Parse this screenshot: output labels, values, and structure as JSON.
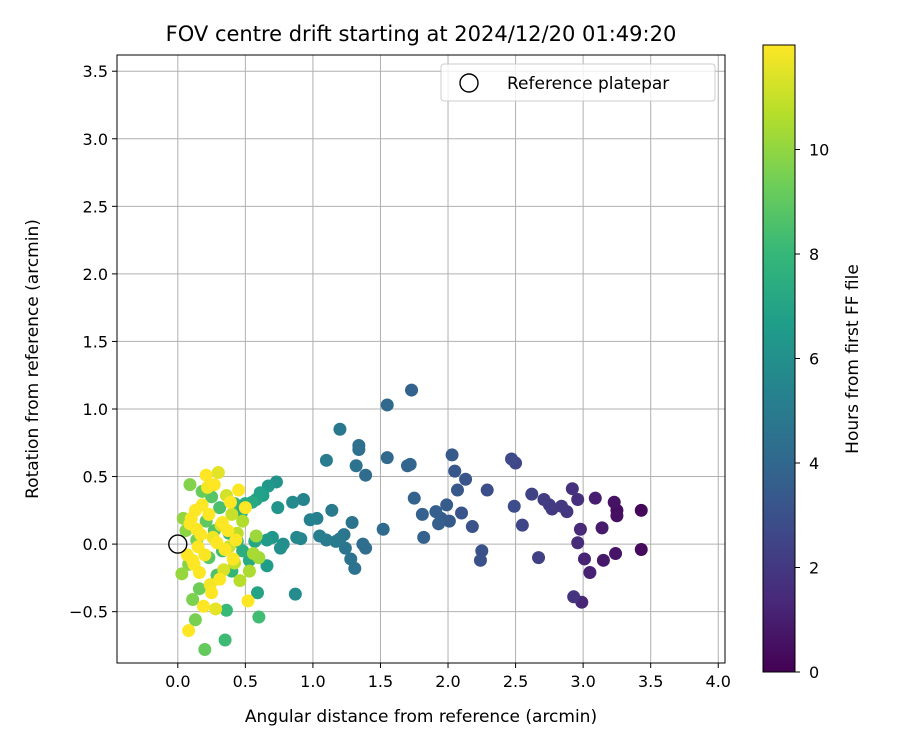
{
  "chart_data": {
    "type": "scatter",
    "title": "FOV centre drift starting at 2024/12/20 01:49:20",
    "xlabel": "Angular distance from reference (arcmin)",
    "ylabel": "Rotation from reference (arcmin)",
    "xlim": [
      -0.45,
      4.05
    ],
    "ylim": [
      -0.88,
      3.62
    ],
    "xticks": [
      0.0,
      0.5,
      1.0,
      1.5,
      2.0,
      2.5,
      3.0,
      3.5,
      4.0
    ],
    "xtick_labels": [
      "0.0",
      "0.5",
      "1.0",
      "1.5",
      "2.0",
      "2.5",
      "3.0",
      "3.5",
      "4.0"
    ],
    "yticks": [
      -0.5,
      0.0,
      0.5,
      1.0,
      1.5,
      2.0,
      2.5,
      3.0,
      3.5
    ],
    "ytick_labels": [
      "−0.5",
      "0.0",
      "0.5",
      "1.0",
      "1.5",
      "2.0",
      "2.5",
      "3.0",
      "3.5"
    ],
    "grid": true,
    "legend": {
      "position": "top-right",
      "entries": [
        "Reference platepar"
      ]
    },
    "reference_point": {
      "x": 0.0,
      "y": 0.0
    },
    "colorbar": {
      "label": "Hours from first FF file",
      "colormap": "viridis",
      "range": [
        0,
        12
      ],
      "ticks": [
        0,
        2,
        4,
        6,
        8,
        10
      ],
      "tick_labels": [
        "0",
        "2",
        "4",
        "6",
        "8",
        "10"
      ]
    },
    "colormap_stops": [
      "#440154",
      "#482878",
      "#3e4989",
      "#31688e",
      "#26828e",
      "#1f9e89",
      "#35b779",
      "#6ece58",
      "#b5de2b",
      "#fde725"
    ],
    "points": [
      {
        "x": 3.43,
        "y": 0.25,
        "h": 0.2
      },
      {
        "x": 3.43,
        "y": -0.04,
        "h": 0.3
      },
      {
        "x": 3.25,
        "y": 0.25,
        "h": 0.4
      },
      {
        "x": 3.25,
        "y": 0.21,
        "h": 0.5
      },
      {
        "x": 3.23,
        "y": 0.31,
        "h": 0.6
      },
      {
        "x": 3.24,
        "y": -0.07,
        "h": 0.7
      },
      {
        "x": 3.15,
        "y": -0.12,
        "h": 0.8
      },
      {
        "x": 3.14,
        "y": 0.12,
        "h": 0.9
      },
      {
        "x": 3.09,
        "y": 0.34,
        "h": 1.0
      },
      {
        "x": 3.05,
        "y": -0.21,
        "h": 1.1
      },
      {
        "x": 3.01,
        "y": -0.11,
        "h": 1.2
      },
      {
        "x": 2.99,
        "y": -0.43,
        "h": 1.3
      },
      {
        "x": 2.98,
        "y": 0.11,
        "h": 1.4
      },
      {
        "x": 2.96,
        "y": 0.01,
        "h": 1.5
      },
      {
        "x": 2.96,
        "y": 0.33,
        "h": 1.6
      },
      {
        "x": 2.92,
        "y": 0.41,
        "h": 1.7
      },
      {
        "x": 2.93,
        "y": -0.39,
        "h": 1.8
      },
      {
        "x": 2.88,
        "y": 0.24,
        "h": 1.9
      },
      {
        "x": 2.84,
        "y": 0.28,
        "h": 2.0
      },
      {
        "x": 2.77,
        "y": 0.26,
        "h": 2.0
      },
      {
        "x": 2.75,
        "y": 0.29,
        "h": 2.1
      },
      {
        "x": 2.71,
        "y": 0.33,
        "h": 2.2
      },
      {
        "x": 2.67,
        "y": -0.1,
        "h": 2.3
      },
      {
        "x": 2.62,
        "y": 0.37,
        "h": 2.4
      },
      {
        "x": 2.55,
        "y": 0.14,
        "h": 2.5
      },
      {
        "x": 2.5,
        "y": 0.6,
        "h": 2.6
      },
      {
        "x": 2.47,
        "y": 0.63,
        "h": 2.7
      },
      {
        "x": 2.49,
        "y": 0.28,
        "h": 2.8
      },
      {
        "x": 2.29,
        "y": 0.4,
        "h": 2.9
      },
      {
        "x": 2.25,
        "y": -0.05,
        "h": 3.0
      },
      {
        "x": 2.24,
        "y": -0.12,
        "h": 3.0
      },
      {
        "x": 2.18,
        "y": 0.13,
        "h": 3.1
      },
      {
        "x": 2.13,
        "y": 0.48,
        "h": 3.2
      },
      {
        "x": 2.1,
        "y": 0.23,
        "h": 3.2
      },
      {
        "x": 2.07,
        "y": 0.4,
        "h": 3.3
      },
      {
        "x": 2.05,
        "y": 0.54,
        "h": 3.3
      },
      {
        "x": 2.03,
        "y": 0.66,
        "h": 3.4
      },
      {
        "x": 2.01,
        "y": 0.17,
        "h": 3.4
      },
      {
        "x": 1.99,
        "y": 0.29,
        "h": 3.5
      },
      {
        "x": 1.95,
        "y": 0.19,
        "h": 3.5
      },
      {
        "x": 1.93,
        "y": 0.15,
        "h": 3.6
      },
      {
        "x": 1.91,
        "y": 0.24,
        "h": 3.6
      },
      {
        "x": 1.82,
        "y": 0.05,
        "h": 3.7
      },
      {
        "x": 1.81,
        "y": 0.22,
        "h": 3.7
      },
      {
        "x": 1.75,
        "y": 0.34,
        "h": 3.8
      },
      {
        "x": 1.73,
        "y": 1.14,
        "h": 3.8
      },
      {
        "x": 1.72,
        "y": 0.59,
        "h": 3.9
      },
      {
        "x": 1.7,
        "y": 0.58,
        "h": 3.9
      },
      {
        "x": 1.55,
        "y": 1.03,
        "h": 4.0
      },
      {
        "x": 1.55,
        "y": 0.64,
        "h": 4.0
      },
      {
        "x": 1.52,
        "y": 0.11,
        "h": 4.1
      },
      {
        "x": 1.39,
        "y": 0.51,
        "h": 4.2
      },
      {
        "x": 1.39,
        "y": -0.03,
        "h": 4.3
      },
      {
        "x": 1.37,
        "y": 0.0,
        "h": 4.3
      },
      {
        "x": 1.34,
        "y": 0.73,
        "h": 4.4
      },
      {
        "x": 1.34,
        "y": 0.7,
        "h": 4.4
      },
      {
        "x": 1.32,
        "y": 0.58,
        "h": 4.5
      },
      {
        "x": 1.31,
        "y": -0.18,
        "h": 4.5
      },
      {
        "x": 1.29,
        "y": 0.16,
        "h": 4.6
      },
      {
        "x": 1.28,
        "y": -0.11,
        "h": 4.6
      },
      {
        "x": 1.24,
        "y": -0.03,
        "h": 4.7
      },
      {
        "x": 1.23,
        "y": 0.07,
        "h": 4.7
      },
      {
        "x": 1.2,
        "y": 0.85,
        "h": 4.8
      },
      {
        "x": 1.2,
        "y": 0.04,
        "h": 4.8
      },
      {
        "x": 1.17,
        "y": 0.02,
        "h": 4.9
      },
      {
        "x": 1.14,
        "y": 0.25,
        "h": 4.9
      },
      {
        "x": 1.1,
        "y": 0.62,
        "h": 5.0
      },
      {
        "x": 1.1,
        "y": 0.03,
        "h": 5.0
      },
      {
        "x": 1.05,
        "y": 0.06,
        "h": 5.1
      },
      {
        "x": 1.03,
        "y": 0.19,
        "h": 5.2
      },
      {
        "x": 0.98,
        "y": 0.18,
        "h": 5.3
      },
      {
        "x": 0.93,
        "y": 0.33,
        "h": 5.4
      },
      {
        "x": 0.91,
        "y": 0.04,
        "h": 5.5
      },
      {
        "x": 0.88,
        "y": 0.05,
        "h": 5.6
      },
      {
        "x": 0.85,
        "y": 0.31,
        "h": 5.7
      },
      {
        "x": 0.87,
        "y": -0.37,
        "h": 5.8
      },
      {
        "x": 0.78,
        "y": 0.0,
        "h": 5.9
      },
      {
        "x": 0.76,
        "y": -0.03,
        "h": 6.0
      },
      {
        "x": 0.73,
        "y": 0.46,
        "h": 6.1
      },
      {
        "x": 0.74,
        "y": 0.27,
        "h": 6.2
      },
      {
        "x": 0.7,
        "y": 0.05,
        "h": 6.3
      },
      {
        "x": 0.67,
        "y": 0.43,
        "h": 6.4
      },
      {
        "x": 0.66,
        "y": 0.03,
        "h": 6.5
      },
      {
        "x": 0.66,
        "y": -0.16,
        "h": 6.6
      },
      {
        "x": 0.63,
        "y": 0.36,
        "h": 6.7
      },
      {
        "x": 0.61,
        "y": 0.38,
        "h": 6.8
      },
      {
        "x": 0.58,
        "y": 0.33,
        "h": 6.9
      },
      {
        "x": 0.59,
        "y": -0.36,
        "h": 7.0
      },
      {
        "x": 0.57,
        "y": 0.02,
        "h": 7.1
      },
      {
        "x": 0.55,
        "y": 0.31,
        "h": 7.2
      },
      {
        "x": 0.53,
        "y": -0.12,
        "h": 7.3
      },
      {
        "x": 0.5,
        "y": 0.3,
        "h": 7.4
      },
      {
        "x": 0.48,
        "y": -0.05,
        "h": 7.5
      },
      {
        "x": 0.47,
        "y": 0.23,
        "h": 7.6
      },
      {
        "x": 0.44,
        "y": 0.02,
        "h": 7.7
      },
      {
        "x": 0.42,
        "y": 0.3,
        "h": 7.8
      },
      {
        "x": 0.4,
        "y": -0.2,
        "h": 7.9
      },
      {
        "x": 0.38,
        "y": 0.08,
        "h": 8.0
      },
      {
        "x": 0.36,
        "y": -0.49,
        "h": 8.1
      },
      {
        "x": 0.35,
        "y": -0.71,
        "h": 8.2
      },
      {
        "x": 0.6,
        "y": -0.54,
        "h": 8.3
      },
      {
        "x": 0.33,
        "y": -0.05,
        "h": 8.4
      },
      {
        "x": 0.31,
        "y": 0.27,
        "h": 8.5
      },
      {
        "x": 0.29,
        "y": -0.23,
        "h": 8.6
      },
      {
        "x": 0.27,
        "y": 0.1,
        "h": 8.7
      },
      {
        "x": 0.25,
        "y": 0.35,
        "h": 8.8
      },
      {
        "x": 0.23,
        "y": -0.1,
        "h": 8.9
      },
      {
        "x": 0.21,
        "y": 0.17,
        "h": 9.0
      },
      {
        "x": 0.2,
        "y": -0.78,
        "h": 9.1
      },
      {
        "x": 0.18,
        "y": 0.39,
        "h": 9.2
      },
      {
        "x": 0.16,
        "y": -0.33,
        "h": 9.3
      },
      {
        "x": 0.14,
        "y": 0.03,
        "h": 9.4
      },
      {
        "x": 0.13,
        "y": -0.56,
        "h": 9.5
      },
      {
        "x": 0.11,
        "y": -0.41,
        "h": 9.6
      },
      {
        "x": 0.09,
        "y": 0.44,
        "h": 9.7
      },
      {
        "x": 0.08,
        "y": -0.15,
        "h": 9.8
      },
      {
        "x": 0.06,
        "y": 0.1,
        "h": 9.9
      },
      {
        "x": 0.04,
        "y": 0.19,
        "h": 10.0
      },
      {
        "x": 0.03,
        "y": -0.22,
        "h": 10.1
      },
      {
        "x": 0.58,
        "y": 0.06,
        "h": 10.2
      },
      {
        "x": 0.6,
        "y": -0.1,
        "h": 10.3
      },
      {
        "x": 0.56,
        "y": -0.07,
        "h": 10.4
      },
      {
        "x": 0.53,
        "y": -0.2,
        "h": 10.5
      },
      {
        "x": 0.48,
        "y": 0.17,
        "h": 10.6
      },
      {
        "x": 0.46,
        "y": -0.27,
        "h": 10.7
      },
      {
        "x": 0.44,
        "y": 0.08,
        "h": 10.8
      },
      {
        "x": 0.42,
        "y": -0.14,
        "h": 10.9
      },
      {
        "x": 0.4,
        "y": 0.22,
        "h": 11.0
      },
      {
        "x": 0.38,
        "y": -0.02,
        "h": 11.1
      },
      {
        "x": 0.36,
        "y": 0.36,
        "h": 11.2
      },
      {
        "x": 0.34,
        "y": -0.19,
        "h": 11.3
      },
      {
        "x": 0.32,
        "y": 0.14,
        "h": 11.4
      },
      {
        "x": 0.3,
        "y": 0.53,
        "h": 11.5
      },
      {
        "x": 0.28,
        "y": -0.48,
        "h": 11.6
      },
      {
        "x": 0.26,
        "y": 0.05,
        "h": 11.7
      },
      {
        "x": 0.24,
        "y": -0.3,
        "h": 11.8
      },
      {
        "x": 0.22,
        "y": 0.42,
        "h": 11.85
      },
      {
        "x": 0.2,
        "y": -0.08,
        "h": 11.9
      },
      {
        "x": 0.18,
        "y": 0.29,
        "h": 11.95
      },
      {
        "x": 0.16,
        "y": -0.21,
        "h": 12.0
      },
      {
        "x": 0.14,
        "y": 0.11,
        "h": 12.0
      },
      {
        "x": 0.12,
        "y": -0.15,
        "h": 12.0
      },
      {
        "x": 0.1,
        "y": 0.19,
        "h": 12.0
      },
      {
        "x": 0.08,
        "y": -0.64,
        "h": 12.0
      },
      {
        "x": 0.52,
        "y": -0.42,
        "h": 12.0
      },
      {
        "x": 0.5,
        "y": 0.27,
        "h": 12.0
      },
      {
        "x": 0.45,
        "y": 0.4,
        "h": 12.0
      },
      {
        "x": 0.43,
        "y": 0.03,
        "h": 12.0
      },
      {
        "x": 0.41,
        "y": -0.11,
        "h": 12.0
      },
      {
        "x": 0.39,
        "y": 0.31,
        "h": 12.0
      },
      {
        "x": 0.37,
        "y": 0.1,
        "h": 12.0
      },
      {
        "x": 0.35,
        "y": -0.04,
        "h": 12.0
      },
      {
        "x": 0.33,
        "y": 0.16,
        "h": 12.0
      },
      {
        "x": 0.31,
        "y": -0.26,
        "h": 12.0
      },
      {
        "x": 0.29,
        "y": 0.01,
        "h": 12.0
      },
      {
        "x": 0.27,
        "y": 0.44,
        "h": 12.0
      },
      {
        "x": 0.25,
        "y": -0.36,
        "h": 12.0
      },
      {
        "x": 0.23,
        "y": 0.22,
        "h": 12.0
      },
      {
        "x": 0.21,
        "y": 0.51,
        "h": 12.0
      },
      {
        "x": 0.19,
        "y": -0.46,
        "h": 12.0
      },
      {
        "x": 0.17,
        "y": 0.07,
        "h": 12.0
      },
      {
        "x": 0.15,
        "y": -0.02,
        "h": 12.0
      },
      {
        "x": 0.13,
        "y": 0.25,
        "h": 12.0
      },
      {
        "x": 0.11,
        "y": -0.12,
        "h": 12.0
      },
      {
        "x": 0.09,
        "y": 0.15,
        "h": 12.0
      },
      {
        "x": 0.07,
        "y": -0.08,
        "h": 12.0
      }
    ]
  }
}
